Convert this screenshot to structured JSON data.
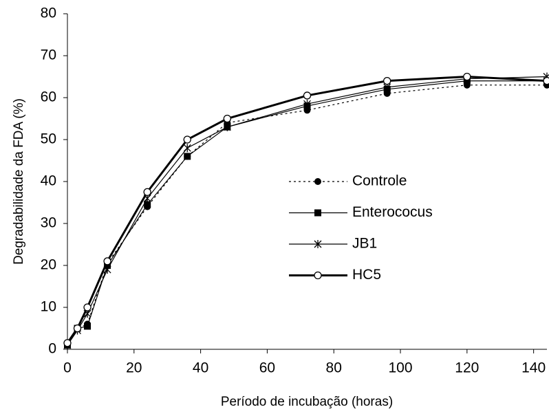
{
  "chart_data": {
    "type": "line",
    "xlabel": "Período de incubação (horas)",
    "ylabel": "Degradabilidade da FDA (%)",
    "x": [
      0,
      3,
      6,
      12,
      24,
      36,
      48,
      72,
      96,
      120,
      144
    ],
    "xlim": [
      0,
      144
    ],
    "xticks": [
      0,
      20,
      40,
      60,
      80,
      100,
      120,
      140
    ],
    "ylim": [
      0,
      80
    ],
    "yticks": [
      0,
      10,
      20,
      30,
      40,
      50,
      60,
      70,
      80
    ],
    "series": [
      {
        "name": "Controle",
        "color": "#000000",
        "dash": "3,4",
        "width": 1.2,
        "marker": "filled-circle",
        "values": [
          1.5,
          5,
          6,
          20.5,
          34,
          46,
          54,
          57,
          61,
          63,
          63
        ]
      },
      {
        "name": "Enterococus",
        "color": "#000000",
        "dash": "none",
        "width": 1.2,
        "marker": "square",
        "values": [
          1,
          5,
          5.5,
          20,
          34.5,
          46,
          53,
          58,
          62,
          64,
          64
        ]
      },
      {
        "name": "JB1",
        "color": "#000000",
        "dash": "none",
        "width": 1.2,
        "marker": "asterisk",
        "values": [
          1,
          4.5,
          8.5,
          19,
          36,
          48,
          53,
          58.5,
          62.5,
          64.5,
          65
        ]
      },
      {
        "name": "HC5",
        "color": "#000000",
        "dash": "none",
        "width": 3,
        "marker": "open-circle",
        "values": [
          1.5,
          5,
          10,
          21,
          37.5,
          50,
          55,
          60.5,
          64,
          65,
          64
        ]
      }
    ]
  }
}
